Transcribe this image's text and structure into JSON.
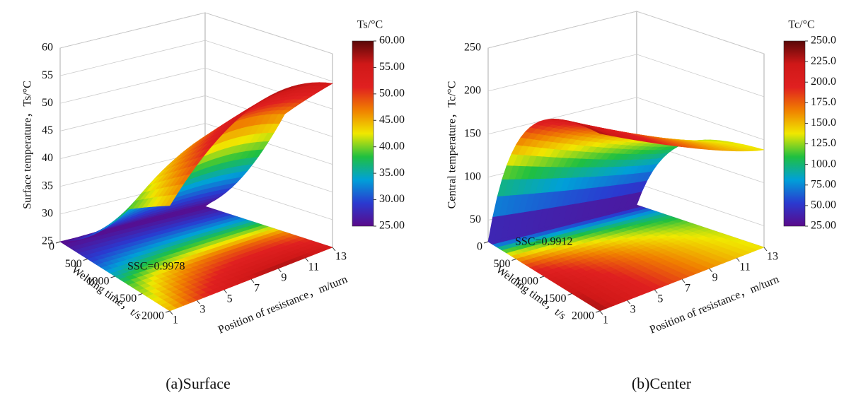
{
  "chart_data": [
    {
      "type": "surface3d",
      "caption": "(a)Surface",
      "zlabel": "Surface temperature，Ts/°C",
      "xlabel": "Welding time，t/s",
      "ylabel": "Position of resistance，m/turn",
      "colorbar_label": "Ts/°C",
      "annotation": "SSC=0.9978",
      "xlim": [
        0,
        2000
      ],
      "xticks": [
        0,
        500,
        1000,
        1500,
        2000
      ],
      "ylim": [
        1,
        13
      ],
      "yticks": [
        1,
        3,
        5,
        7,
        9,
        11,
        13
      ],
      "zlim": [
        25,
        60
      ],
      "zticks": [
        25,
        30,
        35,
        40,
        45,
        50,
        55,
        60
      ],
      "clim": [
        25,
        60
      ],
      "cticks": [
        {
          "value": 25,
          "label": "25.00"
        },
        {
          "value": 30,
          "label": "30.00"
        },
        {
          "value": 35,
          "label": "35.00"
        },
        {
          "value": 40,
          "label": "40.00"
        },
        {
          "value": 45,
          "label": "45.00"
        },
        {
          "value": 50,
          "label": "50.00"
        },
        {
          "value": 55,
          "label": "55.00"
        },
        {
          "value": 60,
          "label": "60.00"
        }
      ],
      "colormap": [
        "#5a0a8a",
        "#2a3ad0",
        "#00a0d8",
        "#20c040",
        "#f0e800",
        "#f08000",
        "#e02020",
        "#d01818",
        "#5a0808"
      ]
    },
    {
      "type": "surface3d",
      "caption": "(b)Center",
      "zlabel": "Central temperature，Tc/°C",
      "xlabel": "Welding time，t/s",
      "ylabel": "Position of resistance，m/turn",
      "colorbar_label": "Tc/°C",
      "annotation": "SSC=0.9912",
      "xlim": [
        0,
        2000
      ],
      "xticks": [
        0,
        500,
        1000,
        1500,
        2000
      ],
      "ylim": [
        1,
        13
      ],
      "yticks": [
        1,
        3,
        5,
        7,
        9,
        11,
        13
      ],
      "zlim": [
        25,
        250
      ],
      "zticks": [
        50,
        100,
        150,
        200,
        250
      ],
      "clim": [
        25,
        250
      ],
      "cticks": [
        {
          "value": 25,
          "label": "25.00"
        },
        {
          "value": 50,
          "label": "50.00"
        },
        {
          "value": 75,
          "label": "75.00"
        },
        {
          "value": 100,
          "label": "100.0"
        },
        {
          "value": 125,
          "label": "125.0"
        },
        {
          "value": 150,
          "label": "150.0"
        },
        {
          "value": 175,
          "label": "175.0"
        },
        {
          "value": 200,
          "label": "200.0"
        },
        {
          "value": 225,
          "label": "225.0"
        },
        {
          "value": 250,
          "label": "250.0"
        }
      ],
      "colormap": [
        "#5a0a8a",
        "#2a3ad0",
        "#00a0d8",
        "#20c040",
        "#f0e800",
        "#f08000",
        "#e02020",
        "#d01818",
        "#5a0808"
      ]
    }
  ]
}
